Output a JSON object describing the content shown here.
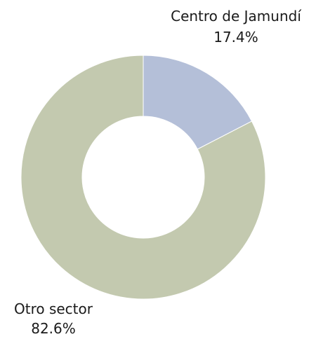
{
  "chart_data": {
    "type": "pie",
    "donut": true,
    "title": "",
    "slices": [
      {
        "label": "Centro de Jamundí",
        "value": 17.4,
        "value_label": "17.4%",
        "color": "#b4bfd8"
      },
      {
        "label": "Otro sector",
        "value": 82.6,
        "value_label": "82.6%",
        "color": "#c3c9af"
      }
    ]
  }
}
